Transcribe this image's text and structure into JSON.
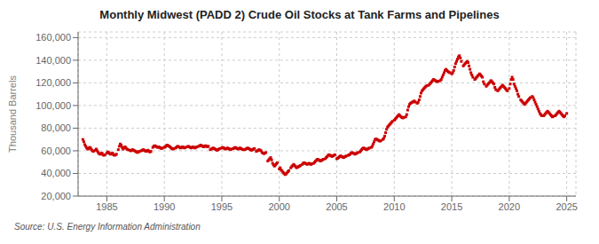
{
  "chart_data": {
    "type": "scatter",
    "title": "Monthly Midwest (PADD 2) Crude Oil Stocks at Tank Farms and Pipelines",
    "y_label": "Thousand Barrels",
    "source": "Source: U.S. Energy Information Administration",
    "color": "#cc0000",
    "marker": "square",
    "grid": true,
    "xlim": [
      1982.5,
      2025.8
    ],
    "xticks": [
      1985,
      1990,
      1995,
      2000,
      2005,
      2010,
      2015,
      2020,
      2025
    ],
    "ylim": [
      20000,
      165000
    ],
    "yticks": [
      {
        "value": 20000,
        "label": "20,000"
      },
      {
        "value": 40000,
        "label": "40,000"
      },
      {
        "value": 60000,
        "label": "60,000"
      },
      {
        "value": 80000,
        "label": "80,000"
      },
      {
        "value": 100000,
        "label": "100,000"
      },
      {
        "value": 120000,
        "label": "120,000"
      },
      {
        "value": 140000,
        "label": "140,000"
      },
      {
        "value": 160000,
        "label": "160,000"
      }
    ],
    "x": [
      1982.917,
      1983.0,
      1983.083,
      1983.167,
      1983.25,
      1983.333,
      1983.417,
      1983.5,
      1983.583,
      1983.667,
      1983.75,
      1983.833,
      1984.0,
      1984.083,
      1984.167,
      1984.25,
      1984.333,
      1984.417,
      1984.5,
      1984.583,
      1984.667,
      1984.75,
      1984.833,
      1985.0,
      1985.083,
      1985.167,
      1985.25,
      1985.333,
      1985.417,
      1985.5,
      1985.583,
      1985.667,
      1985.75,
      1985.833,
      1986.0,
      1986.083,
      1986.167,
      1986.25,
      1986.333,
      1986.417,
      1986.5,
      1986.583,
      1986.667,
      1986.75,
      1986.833,
      1987.0,
      1987.083,
      1987.167,
      1987.25,
      1987.333,
      1987.417,
      1987.5,
      1987.583,
      1987.667,
      1987.75,
      1987.833,
      1988.0,
      1988.083,
      1988.167,
      1988.25,
      1988.333,
      1988.417,
      1988.5,
      1988.583,
      1988.667,
      1988.75,
      1988.833,
      1989.0,
      1989.083,
      1989.167,
      1989.25,
      1989.333,
      1989.417,
      1989.5,
      1989.583,
      1989.667,
      1989.75,
      1989.833,
      1990.0,
      1990.083,
      1990.167,
      1990.25,
      1990.333,
      1990.417,
      1990.5,
      1990.583,
      1990.667,
      1990.75,
      1990.833,
      1991.0,
      1991.083,
      1991.167,
      1991.25,
      1991.333,
      1991.417,
      1991.5,
      1991.583,
      1991.667,
      1991.75,
      1991.833,
      1992.0,
      1992.083,
      1992.167,
      1992.25,
      1992.333,
      1992.417,
      1992.5,
      1992.583,
      1992.667,
      1992.75,
      1992.833,
      1993.0,
      1993.083,
      1993.167,
      1993.25,
      1993.333,
      1993.417,
      1993.5,
      1993.583,
      1993.667,
      1993.75,
      1993.833,
      1994.0,
      1994.083,
      1994.167,
      1994.25,
      1994.333,
      1994.417,
      1994.5,
      1994.583,
      1994.667,
      1994.75,
      1994.833,
      1995.0,
      1995.083,
      1995.167,
      1995.25,
      1995.333,
      1995.417,
      1995.5,
      1995.583,
      1995.667,
      1995.75,
      1995.833,
      1996.0,
      1996.083,
      1996.167,
      1996.25,
      1996.333,
      1996.417,
      1996.5,
      1996.583,
      1996.667,
      1996.75,
      1996.833,
      1997.0,
      1997.083,
      1997.167,
      1997.25,
      1997.333,
      1997.417,
      1997.5,
      1997.583,
      1997.667,
      1997.75,
      1997.833,
      1998.0,
      1998.083,
      1998.167,
      1998.25,
      1998.333,
      1998.417,
      1998.5,
      1998.583,
      1998.667,
      1998.75,
      1998.833,
      1999.0,
      1999.083,
      1999.167,
      1999.25,
      1999.333,
      1999.417,
      1999.5,
      1999.583,
      1999.667,
      1999.75,
      1999.833,
      2000.0,
      2000.083,
      2000.167,
      2000.25,
      2000.333,
      2000.417,
      2000.5,
      2000.583,
      2000.667,
      2000.75,
      2000.833,
      2001.0,
      2001.083,
      2001.167,
      2001.25,
      2001.333,
      2001.417,
      2001.5,
      2001.583,
      2001.667,
      2001.75,
      2001.833,
      2002.0,
      2002.083,
      2002.167,
      2002.25,
      2002.333,
      2002.417,
      2002.5,
      2002.583,
      2002.667,
      2002.75,
      2002.833,
      2003.0,
      2003.083,
      2003.167,
      2003.25,
      2003.333,
      2003.417,
      2003.5,
      2003.583,
      2003.667,
      2003.75,
      2003.833,
      2004.0,
      2004.083,
      2004.167,
      2004.25,
      2004.333,
      2004.417,
      2004.5,
      2004.583,
      2004.667,
      2004.75,
      2004.833,
      2005.0,
      2005.083,
      2005.167,
      2005.25,
      2005.333,
      2005.417,
      2005.5,
      2005.583,
      2005.667,
      2005.75,
      2005.833,
      2006.0,
      2006.083,
      2006.167,
      2006.25,
      2006.333,
      2006.417,
      2006.5,
      2006.583,
      2006.667,
      2006.75,
      2006.833,
      2007.0,
      2007.083,
      2007.167,
      2007.25,
      2007.333,
      2007.417,
      2007.5,
      2007.583,
      2007.667,
      2007.75,
      2007.833,
      2008.0,
      2008.083,
      2008.167,
      2008.25,
      2008.333,
      2008.417,
      2008.5,
      2008.583,
      2008.667,
      2008.75,
      2008.833,
      2009.0,
      2009.083,
      2009.167,
      2009.25,
      2009.333,
      2009.417,
      2009.5,
      2009.583,
      2009.667,
      2009.75,
      2009.833,
      2010.0,
      2010.083,
      2010.167,
      2010.25,
      2010.333,
      2010.417,
      2010.5,
      2010.583,
      2010.667,
      2010.75,
      2010.833,
      2011.0,
      2011.083,
      2011.167,
      2011.25,
      2011.333,
      2011.417,
      2011.5,
      2011.583,
      2011.667,
      2011.75,
      2011.833,
      2012.0,
      2012.083,
      2012.167,
      2012.25,
      2012.333,
      2012.417,
      2012.5,
      2012.583,
      2012.667,
      2012.75,
      2012.833,
      2013.0,
      2013.083,
      2013.167,
      2013.25,
      2013.333,
      2013.417,
      2013.5,
      2013.583,
      2013.667,
      2013.75,
      2013.833,
      2014.0,
      2014.083,
      2014.167,
      2014.25,
      2014.333,
      2014.417,
      2014.5,
      2014.583,
      2014.667,
      2014.75,
      2014.833,
      2015.0,
      2015.083,
      2015.167,
      2015.25,
      2015.333,
      2015.417,
      2015.5,
      2015.583,
      2015.667,
      2015.75,
      2015.833,
      2016.0,
      2016.083,
      2016.167,
      2016.25,
      2016.333,
      2016.417,
      2016.5,
      2016.583,
      2016.667,
      2016.75,
      2016.833,
      2017.0,
      2017.083,
      2017.167,
      2017.25,
      2017.333,
      2017.417,
      2017.5,
      2017.583,
      2017.667,
      2017.75,
      2017.833,
      2018.0,
      2018.083,
      2018.167,
      2018.25,
      2018.333,
      2018.417,
      2018.5,
      2018.583,
      2018.667,
      2018.75,
      2018.833,
      2019.0,
      2019.083,
      2019.167,
      2019.25,
      2019.333,
      2019.417,
      2019.5,
      2019.583,
      2019.667,
      2019.75,
      2019.833,
      2020.0,
      2020.083,
      2020.167,
      2020.25,
      2020.333,
      2020.417,
      2020.5,
      2020.583,
      2020.667,
      2020.75,
      2020.833,
      2021.0,
      2021.083,
      2021.167,
      2021.25,
      2021.333,
      2021.417,
      2021.5,
      2021.583,
      2021.667,
      2021.75,
      2021.833,
      2022.0,
      2022.083,
      2022.167,
      2022.25,
      2022.333,
      2022.417,
      2022.5,
      2022.583,
      2022.667,
      2022.75,
      2022.833,
      2023.0,
      2023.083,
      2023.167,
      2023.25,
      2023.333,
      2023.417,
      2023.5,
      2023.583,
      2023.667,
      2023.75,
      2023.833,
      2024.0,
      2024.083,
      2024.167,
      2024.25,
      2024.333,
      2024.417,
      2024.5,
      2024.583,
      2024.667,
      2024.75,
      2024.833,
      2025.0
    ],
    "values": [
      70000,
      68000,
      65500,
      64000,
      62500,
      61500,
      62000,
      63000,
      62500,
      61000,
      60000,
      59500,
      60500,
      61500,
      60000,
      58500,
      57500,
      57000,
      57500,
      58000,
      56500,
      56000,
      56500,
      58000,
      59000,
      58500,
      57500,
      57000,
      57500,
      58000,
      56500,
      56000,
      56500,
      57000,
      61000,
      64000,
      66000,
      65000,
      63000,
      61500,
      62500,
      63500,
      62500,
      61500,
      61000,
      60500,
      60000,
      60500,
      61000,
      60500,
      60000,
      59500,
      59000,
      58500,
      59000,
      59500,
      60000,
      60500,
      61000,
      60500,
      60000,
      59500,
      60000,
      60500,
      59500,
      59000,
      59500,
      63000,
      64000,
      64500,
      64000,
      63500,
      63000,
      63500,
      63000,
      62500,
      62000,
      62500,
      63000,
      63500,
      64500,
      65000,
      64500,
      64000,
      63500,
      62500,
      62000,
      61500,
      62000,
      62500,
      63500,
      64000,
      63500,
      63000,
      62500,
      63000,
      63500,
      63000,
      62500,
      63000,
      63500,
      64000,
      63500,
      63000,
      62500,
      63000,
      63500,
      63000,
      62500,
      63000,
      63500,
      64000,
      64500,
      65000,
      64500,
      64000,
      63500,
      64000,
      64500,
      64000,
      63500,
      64000,
      61000,
      61500,
      62000,
      62500,
      62000,
      61500,
      61000,
      60500,
      61000,
      61500,
      62000,
      62500,
      63000,
      62500,
      62000,
      61500,
      62000,
      62500,
      62000,
      61500,
      61000,
      61500,
      62000,
      62500,
      63000,
      62500,
      62000,
      61500,
      62000,
      62500,
      62000,
      61500,
      61000,
      61000,
      61500,
      62000,
      62500,
      62000,
      61500,
      61000,
      60500,
      61000,
      61500,
      62000,
      59500,
      60000,
      60500,
      61000,
      60500,
      60000,
      58500,
      58000,
      57500,
      58000,
      58500,
      51000,
      52000,
      53000,
      54000,
      52000,
      49000,
      47500,
      46500,
      47500,
      48500,
      49500,
      44000,
      45000,
      43000,
      42000,
      41000,
      40000,
      39000,
      39500,
      40500,
      41500,
      42500,
      45000,
      46000,
      47000,
      48000,
      47000,
      46000,
      45000,
      45500,
      46000,
      46500,
      47000,
      48000,
      49000,
      49500,
      49000,
      48500,
      48000,
      48500,
      49000,
      48500,
      48000,
      48500,
      49000,
      50000,
      51000,
      52000,
      52500,
      52000,
      51500,
      51000,
      51500,
      52000,
      52500,
      53000,
      54000,
      55000,
      56000,
      56500,
      56000,
      55500,
      55000,
      55500,
      56000,
      56500,
      53000,
      53500,
      54000,
      55000,
      55500,
      55000,
      54500,
      54000,
      54500,
      55000,
      55500,
      56000,
      56500,
      57000,
      58000,
      58500,
      58000,
      57500,
      57000,
      57500,
      58000,
      58500,
      59000,
      60000,
      61000,
      62000,
      62500,
      62000,
      61500,
      61000,
      61500,
      62000,
      62500,
      63000,
      64000,
      66000,
      68000,
      70000,
      70500,
      70000,
      69500,
      69000,
      68500,
      69000,
      70000,
      71000,
      73000,
      76000,
      79000,
      81000,
      82000,
      83000,
      84000,
      85000,
      86000,
      87000,
      88000,
      89000,
      90000,
      91000,
      92000,
      91000,
      90000,
      89500,
      89000,
      89500,
      90000,
      92000,
      96000,
      99000,
      101000,
      102000,
      102500,
      103000,
      103500,
      104000,
      103000,
      102000,
      103000,
      105000,
      108000,
      111000,
      113000,
      114000,
      115000,
      116000,
      117000,
      117500,
      118000,
      119000,
      120000,
      121000,
      122000,
      123000,
      122500,
      122000,
      121500,
      121000,
      121500,
      122000,
      123000,
      125000,
      127000,
      129000,
      131000,
      132000,
      131000,
      130000,
      129500,
      129000,
      128000,
      129000,
      131000,
      134000,
      137000,
      139000,
      141000,
      143000,
      144000,
      142000,
      139000,
      135000,
      136000,
      137000,
      138000,
      139000,
      138000,
      135000,
      132000,
      129000,
      127000,
      125000,
      123000,
      124000,
      125000,
      126000,
      127000,
      128000,
      127000,
      126000,
      125000,
      121000,
      119000,
      117000,
      118000,
      119000,
      120000,
      121000,
      122000,
      121000,
      120000,
      119000,
      116000,
      114000,
      113000,
      114000,
      115000,
      116000,
      117000,
      118000,
      117000,
      116000,
      115000,
      114000,
      113000,
      115000,
      119000,
      123000,
      125000,
      123000,
      119000,
      117000,
      115000,
      113000,
      110000,
      108000,
      105000,
      104000,
      103000,
      102000,
      101000,
      102000,
      103000,
      104000,
      105000,
      106000,
      107000,
      108000,
      107000,
      105000,
      103000,
      101000,
      99000,
      97000,
      95000,
      93000,
      92000,
      91000,
      91000,
      92000,
      93000,
      94000,
      95000,
      94000,
      93000,
      92000,
      91000,
      90000,
      90500,
      91000,
      92000,
      93000,
      94000,
      95000,
      94000,
      93000,
      92000,
      91000,
      90000,
      91000,
      93000
    ]
  }
}
